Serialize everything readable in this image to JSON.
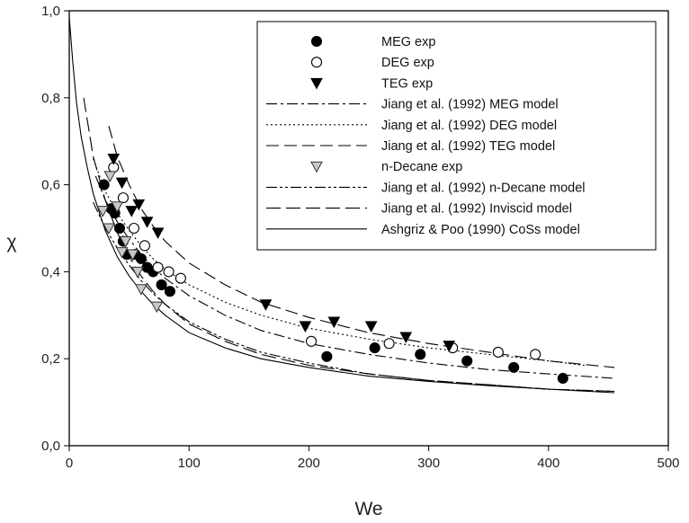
{
  "chart_data": {
    "type": "scatter",
    "title": "",
    "xlabel": "We",
    "ylabel": "χ",
    "xlim": [
      0,
      500
    ],
    "ylim": [
      0.0,
      1.0
    ],
    "x_ticks": [
      "0",
      "100",
      "200",
      "300",
      "400",
      "500"
    ],
    "y_ticks": [
      "0,0",
      "0,2",
      "0,4",
      "0,6",
      "0,8",
      "1,0"
    ],
    "grid": false,
    "legend_position": "top-right",
    "series": [
      {
        "name": "MEG exp",
        "kind": "points",
        "marker": "filled-circle",
        "x": [
          29,
          35,
          38,
          42,
          45,
          48,
          55,
          60,
          65,
          70,
          77,
          84,
          215,
          255,
          293,
          332,
          371,
          412
        ],
        "y": [
          0.6,
          0.545,
          0.535,
          0.5,
          0.47,
          0.44,
          0.44,
          0.43,
          0.41,
          0.4,
          0.37,
          0.355,
          0.205,
          0.225,
          0.21,
          0.195,
          0.18,
          0.155
        ]
      },
      {
        "name": "DEG exp",
        "kind": "points",
        "marker": "open-circle",
        "x": [
          37,
          45,
          54,
          63,
          74,
          83,
          93,
          202,
          267,
          320,
          358,
          389
        ],
        "y": [
          0.64,
          0.57,
          0.5,
          0.46,
          0.41,
          0.4,
          0.385,
          0.24,
          0.235,
          0.225,
          0.215,
          0.21
        ]
      },
      {
        "name": "TEG exp",
        "kind": "points",
        "marker": "filled-triangle-down",
        "x": [
          37,
          44,
          52,
          58,
          65,
          74,
          164,
          197,
          221,
          252,
          281,
          317
        ],
        "y": [
          0.66,
          0.605,
          0.54,
          0.555,
          0.515,
          0.49,
          0.325,
          0.275,
          0.285,
          0.275,
          0.25,
          0.23
        ]
      },
      {
        "name": "Jiang et al. (1992) MEG model",
        "kind": "curve",
        "dash": "12 4 3 4",
        "x": [
          22,
          30,
          40,
          50,
          60,
          70,
          80,
          100,
          130,
          160,
          200,
          250,
          300,
          350,
          400,
          455
        ],
        "y": [
          0.62,
          0.565,
          0.515,
          0.475,
          0.44,
          0.41,
          0.385,
          0.345,
          0.3,
          0.265,
          0.235,
          0.21,
          0.19,
          0.175,
          0.165,
          0.155
        ]
      },
      {
        "name": "Jiang et al. (1992) DEG model",
        "kind": "curve",
        "dash": "2 3",
        "x": [
          20,
          30,
          40,
          50,
          60,
          70,
          80,
          100,
          130,
          160,
          200,
          250,
          300,
          350,
          400,
          430
        ],
        "y": [
          0.66,
          0.585,
          0.535,
          0.495,
          0.46,
          0.43,
          0.405,
          0.37,
          0.33,
          0.3,
          0.27,
          0.245,
          0.225,
          0.21,
          0.195,
          0.185
        ]
      },
      {
        "name": "Jiang et al. (1992) TEG model",
        "kind": "curve",
        "dash": "14 6",
        "x": [
          33,
          40,
          50,
          60,
          70,
          80,
          100,
          130,
          160,
          200,
          250,
          300,
          350,
          400,
          455
        ],
        "y": [
          0.735,
          0.665,
          0.6,
          0.545,
          0.505,
          0.47,
          0.42,
          0.37,
          0.33,
          0.295,
          0.26,
          0.235,
          0.215,
          0.195,
          0.18
        ]
      },
      {
        "name": "n-Decane exp",
        "kind": "points",
        "marker": "open-triangle-down",
        "x": [
          28,
          33,
          34,
          40,
          44,
          47,
          53,
          57,
          60,
          73
        ],
        "y": [
          0.54,
          0.5,
          0.62,
          0.55,
          0.445,
          0.47,
          0.44,
          0.4,
          0.36,
          0.32
        ]
      },
      {
        "name": "Jiang et al. (1992) n-Decane model",
        "kind": "curve",
        "dash": "12 3 3 3 3 3",
        "x": [
          20,
          30,
          40,
          50,
          60,
          70,
          80,
          100,
          130,
          160,
          200,
          250,
          300,
          350,
          400,
          455
        ],
        "y": [
          0.56,
          0.5,
          0.455,
          0.415,
          0.38,
          0.35,
          0.325,
          0.285,
          0.245,
          0.215,
          0.19,
          0.165,
          0.15,
          0.14,
          0.13,
          0.125
        ]
      },
      {
        "name": "Jiang et al. (1992) Inviscid model",
        "kind": "curve",
        "dash": "16 6",
        "x": [
          12,
          20,
          30,
          40,
          50,
          60,
          70,
          80,
          100,
          130,
          160,
          200,
          250,
          300,
          350,
          400,
          455
        ],
        "y": [
          0.8,
          0.665,
          0.565,
          0.49,
          0.435,
          0.39,
          0.355,
          0.325,
          0.28,
          0.24,
          0.21,
          0.185,
          0.165,
          0.15,
          0.14,
          0.13,
          0.125
        ]
      },
      {
        "name": "Ashgriz & Poo (1990) CoSs model",
        "kind": "curve",
        "dash": "",
        "x": [
          0,
          3,
          6,
          10,
          15,
          20,
          30,
          40,
          50,
          60,
          70,
          80,
          100,
          130,
          160,
          200,
          250,
          300,
          350,
          400,
          455
        ],
        "y": [
          0.985,
          0.88,
          0.79,
          0.71,
          0.64,
          0.58,
          0.495,
          0.435,
          0.39,
          0.355,
          0.325,
          0.3,
          0.26,
          0.225,
          0.2,
          0.18,
          0.16,
          0.148,
          0.138,
          0.13,
          0.122
        ]
      }
    ]
  }
}
